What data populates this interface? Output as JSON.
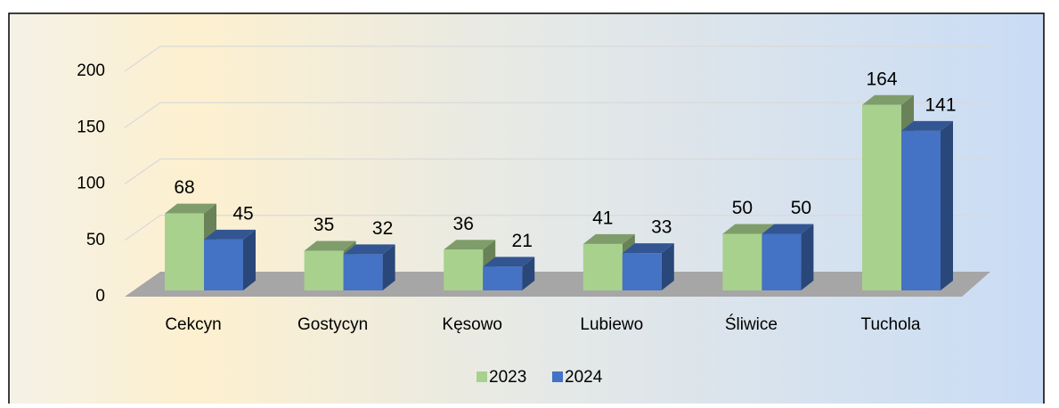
{
  "chart_data": {
    "type": "bar3d",
    "categories": [
      "Cekcyn",
      "Gostycyn",
      "Kęsowo",
      "Lubiewo",
      "Śliwice",
      "Tuchola"
    ],
    "series": [
      {
        "name": "2023",
        "color": "#a9d18e",
        "values": [
          68,
          35,
          36,
          41,
          50,
          164
        ]
      },
      {
        "name": "2024",
        "color": "#4472c4",
        "values": [
          45,
          32,
          21,
          33,
          50,
          141
        ]
      }
    ],
    "ylim": [
      0,
      200
    ],
    "yticks": [
      0,
      50,
      100,
      150,
      200
    ],
    "grid": true,
    "legend": "bottom"
  }
}
